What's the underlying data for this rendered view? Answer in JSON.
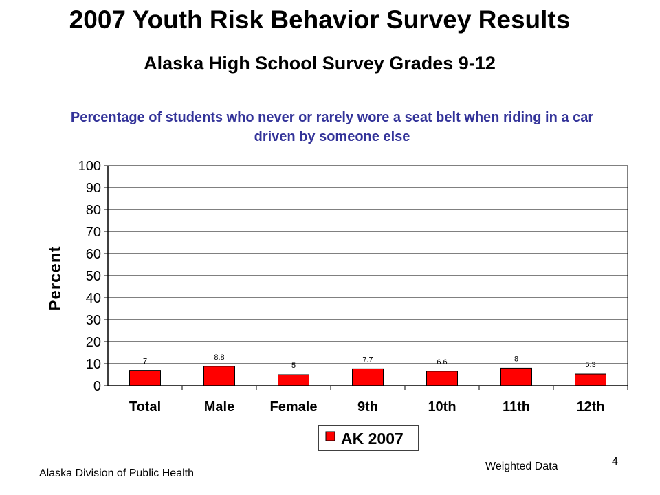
{
  "slide": {
    "title": "2007 Youth Risk Behavior Survey Results",
    "subtitle": "Alaska High School Survey Grades 9-12",
    "footer_left": "Alaska Division of Public Health",
    "footer_right": "Weighted Data",
    "page_number": "4"
  },
  "colors": {
    "bar_fill": "#ff0000",
    "title_accent": "#333399"
  },
  "chart_data": {
    "type": "bar",
    "title": "Percentage of students who never or rarely wore a seat belt when riding in a car driven by someone else",
    "ylabel": "Percent",
    "xlabel": "",
    "ylim": [
      0,
      100
    ],
    "yticks": [
      0,
      10,
      20,
      30,
      40,
      50,
      60,
      70,
      80,
      90,
      100
    ],
    "grid": true,
    "legend_position": "bottom",
    "categories": [
      "Total",
      "Male",
      "Female",
      "9th",
      "10th",
      "11th",
      "12th"
    ],
    "series": [
      {
        "name": "AK 2007",
        "values": [
          7,
          8.8,
          5,
          7.7,
          6.6,
          8,
          5.3
        ]
      }
    ],
    "data_labels": [
      "7",
      "8.8",
      "5",
      "7.7",
      "6.6",
      "8",
      "5.3"
    ]
  }
}
